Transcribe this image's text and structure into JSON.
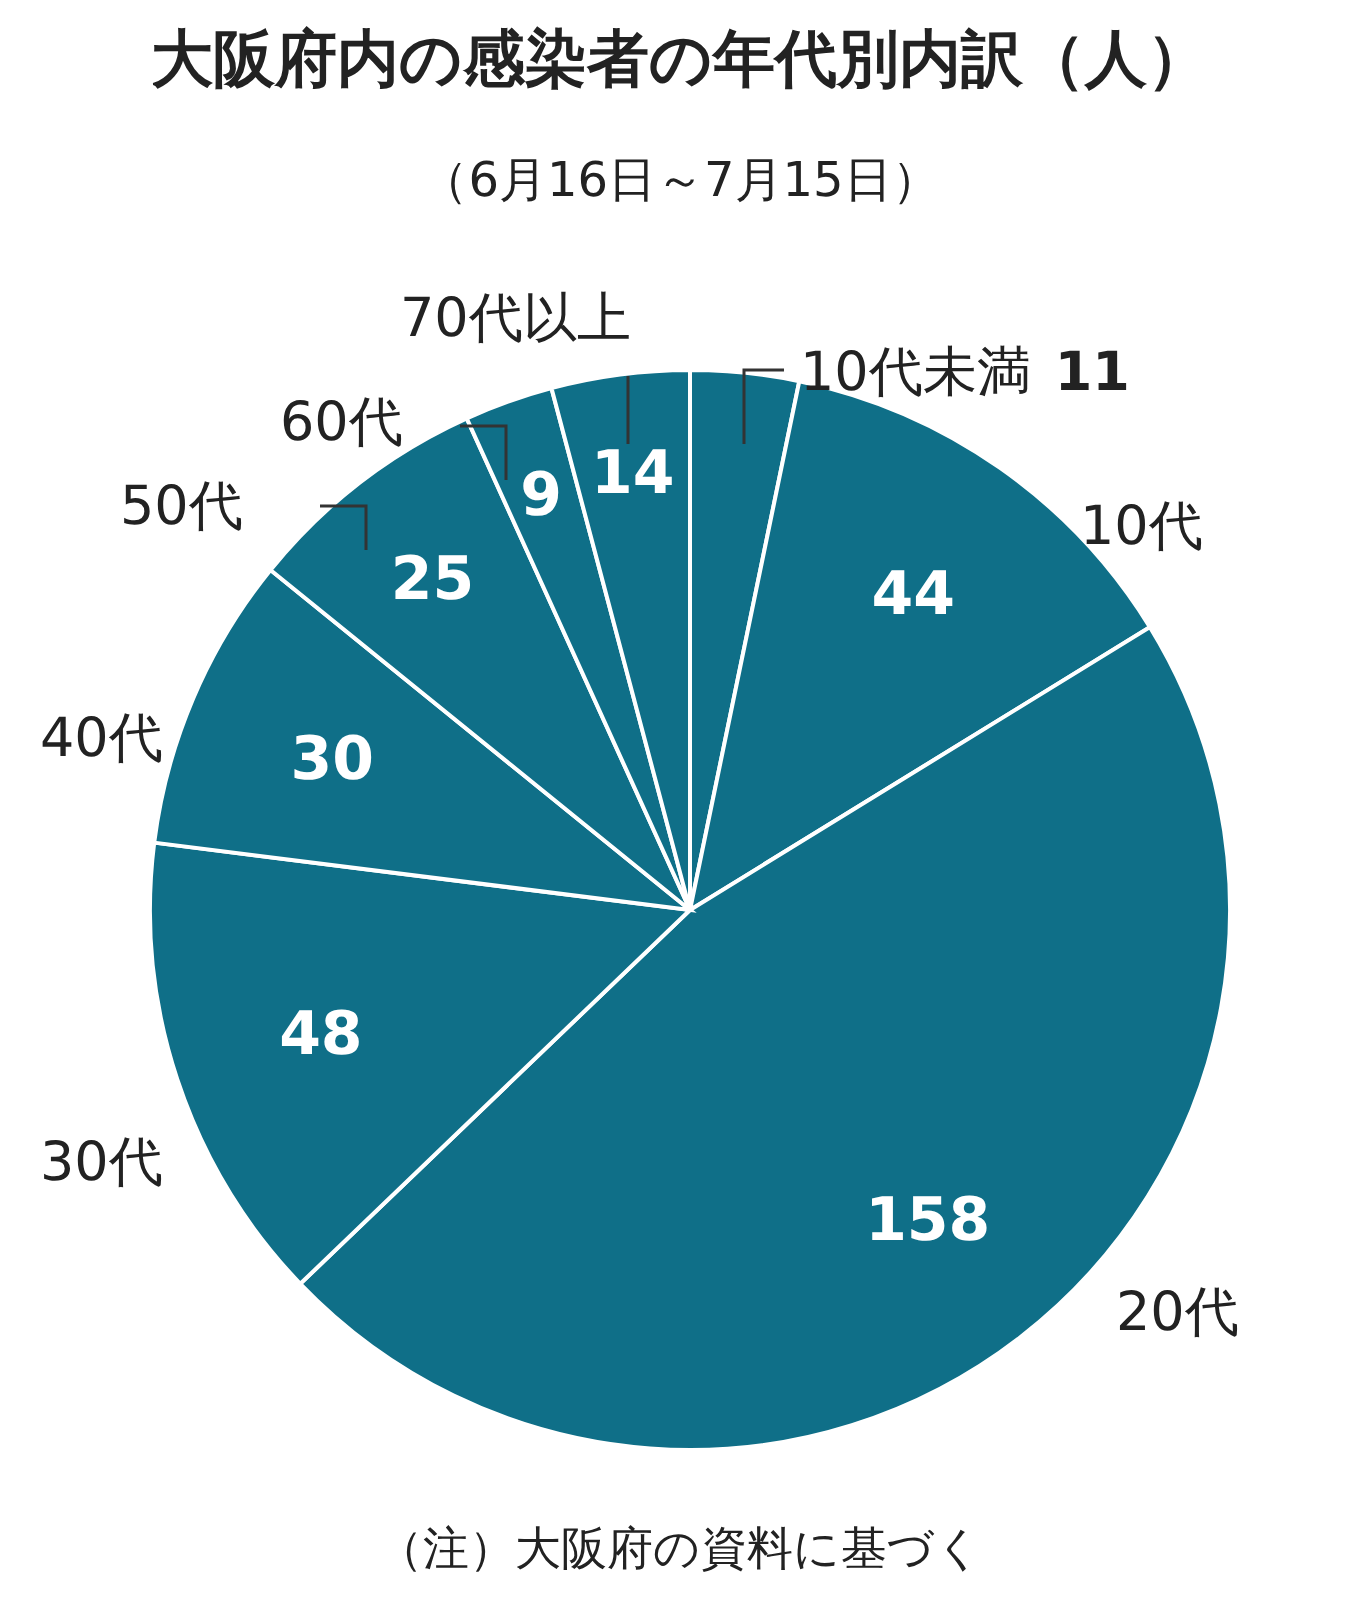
{
  "chart_data": {
    "type": "pie",
    "title": "大阪府内の感染者の年代別内訳（人）",
    "subtitle": "（6月16日～7月15日）",
    "categories": [
      "10代未満",
      "10代",
      "20代",
      "30代",
      "40代",
      "50代",
      "60代",
      "70代以上"
    ],
    "values": [
      11,
      44,
      158,
      48,
      30,
      25,
      9,
      14
    ],
    "colors": [
      "#0f6f88",
      "#0f6f88",
      "#0f6f88",
      "#0f6f88",
      "#0f6f88",
      "#0f6f88",
      "#0f6f88",
      "#0f6f88"
    ],
    "data_labels": true,
    "annotations": [
      "（注）大阪府の資料に基づく"
    ]
  }
}
